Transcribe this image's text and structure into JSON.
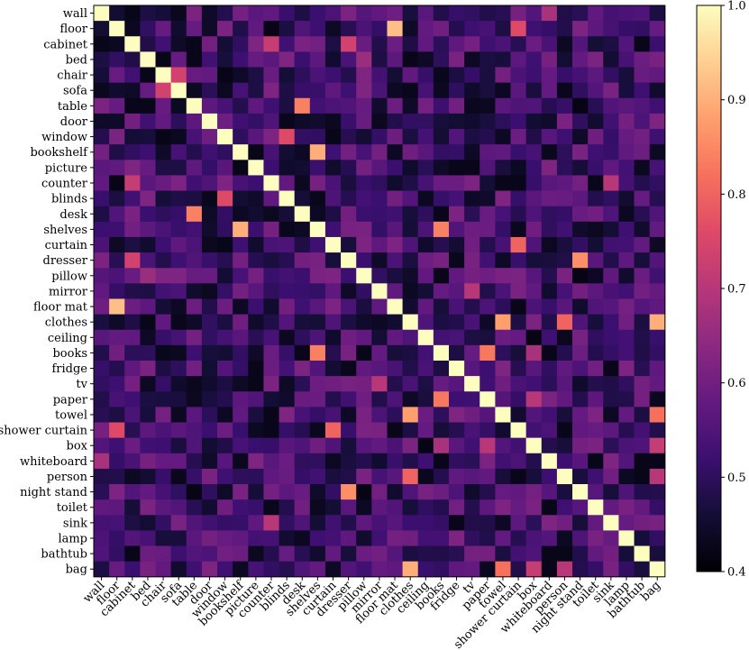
{
  "chart_data": {
    "type": "heatmap",
    "title": "",
    "xlabel": "",
    "ylabel": "",
    "categories": [
      "wall",
      "floor",
      "cabinet",
      "bed",
      "chair",
      "sofa",
      "table",
      "door",
      "window",
      "bookshelf",
      "picture",
      "counter",
      "blinds",
      "desk",
      "shelves",
      "curtain",
      "dresser",
      "pillow",
      "mirror",
      "floor mat",
      "clothes",
      "ceiling",
      "books",
      "fridge",
      "tv",
      "paper",
      "towel",
      "shower curtain",
      "box",
      "whiteboard",
      "person",
      "night stand",
      "toilet",
      "sink",
      "lamp",
      "bathtub",
      "bag"
    ],
    "colorbar": {
      "min": 0.4,
      "max": 1.0,
      "ticks": [
        "0.4",
        "0.5",
        "0.6",
        "0.7",
        "0.8",
        "0.9",
        "1.0"
      ],
      "colormap": "magma"
    },
    "base_value": 0.5,
    "diagonal_value": 1.0,
    "highlights": [
      {
        "row": "floor",
        "col": "floor mat",
        "value": 0.92
      },
      {
        "row": "floor",
        "col": "shower curtain",
        "value": 0.76
      },
      {
        "row": "cabinet",
        "col": "counter",
        "value": 0.72
      },
      {
        "row": "cabinet",
        "col": "dresser",
        "value": 0.74
      },
      {
        "row": "chair",
        "col": "sofa",
        "value": 0.74
      },
      {
        "row": "table",
        "col": "desk",
        "value": 0.84
      },
      {
        "row": "window",
        "col": "blinds",
        "value": 0.76
      },
      {
        "row": "bookshelf",
        "col": "shelves",
        "value": 0.9
      },
      {
        "row": "dresser",
        "col": "night stand",
        "value": 0.86
      },
      {
        "row": "curtain",
        "col": "shower curtain",
        "value": 0.8
      },
      {
        "row": "clothes",
        "col": "towel",
        "value": 0.88
      },
      {
        "row": "clothes",
        "col": "bag",
        "value": 0.9
      },
      {
        "row": "clothes",
        "col": "person",
        "value": 0.8
      },
      {
        "row": "books",
        "col": "paper",
        "value": 0.83
      },
      {
        "row": "books",
        "col": "box",
        "value": 0.68
      },
      {
        "row": "towel",
        "col": "bag",
        "value": 0.82
      },
      {
        "row": "paper",
        "col": "box",
        "value": 0.7
      },
      {
        "row": "mirror",
        "col": "tv",
        "value": 0.7
      },
      {
        "row": "shelves",
        "col": "books",
        "value": 0.84
      },
      {
        "row": "counter",
        "col": "sink",
        "value": 0.7
      },
      {
        "row": "person",
        "col": "bag",
        "value": 0.7
      },
      {
        "row": "box",
        "col": "bag",
        "value": 0.72
      },
      {
        "row": "wall",
        "col": "whiteboard",
        "value": 0.68
      },
      {
        "row": "bed",
        "col": "pillow",
        "value": 0.66
      }
    ]
  }
}
